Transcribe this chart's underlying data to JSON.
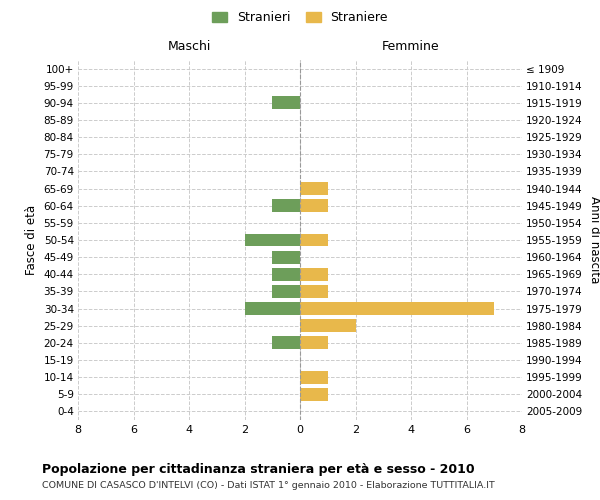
{
  "age_groups": [
    "100+",
    "95-99",
    "90-94",
    "85-89",
    "80-84",
    "75-79",
    "70-74",
    "65-69",
    "60-64",
    "55-59",
    "50-54",
    "45-49",
    "40-44",
    "35-39",
    "30-34",
    "25-29",
    "20-24",
    "15-19",
    "10-14",
    "5-9",
    "0-4"
  ],
  "birth_years": [
    "≤ 1909",
    "1910-1914",
    "1915-1919",
    "1920-1924",
    "1925-1929",
    "1930-1934",
    "1935-1939",
    "1940-1944",
    "1945-1949",
    "1950-1954",
    "1955-1959",
    "1960-1964",
    "1965-1969",
    "1970-1974",
    "1975-1979",
    "1980-1984",
    "1985-1989",
    "1990-1994",
    "1995-1999",
    "2000-2004",
    "2005-2009"
  ],
  "males": [
    0,
    0,
    1,
    0,
    0,
    0,
    0,
    0,
    1,
    0,
    2,
    1,
    1,
    1,
    2,
    0,
    1,
    0,
    0,
    0,
    0
  ],
  "females": [
    0,
    0,
    0,
    0,
    0,
    0,
    0,
    1,
    1,
    0,
    1,
    0,
    1,
    1,
    7,
    2,
    1,
    0,
    1,
    1,
    0
  ],
  "male_color": "#6d9e5a",
  "female_color": "#e8b84b",
  "title": "Popolazione per cittadinanza straniera per età e sesso - 2010",
  "subtitle": "COMUNE DI CASASCO D'INTELVI (CO) - Dati ISTAT 1° gennaio 2010 - Elaborazione TUTTITALIA.IT",
  "xlabel_left": "Maschi",
  "xlabel_right": "Femmine",
  "ylabel_left": "Fasce di età",
  "ylabel_right": "Anni di nascita",
  "legend_male": "Stranieri",
  "legend_female": "Straniere",
  "xlim": 8,
  "background_color": "#ffffff",
  "grid_color": "#cccccc",
  "bar_height": 0.75
}
